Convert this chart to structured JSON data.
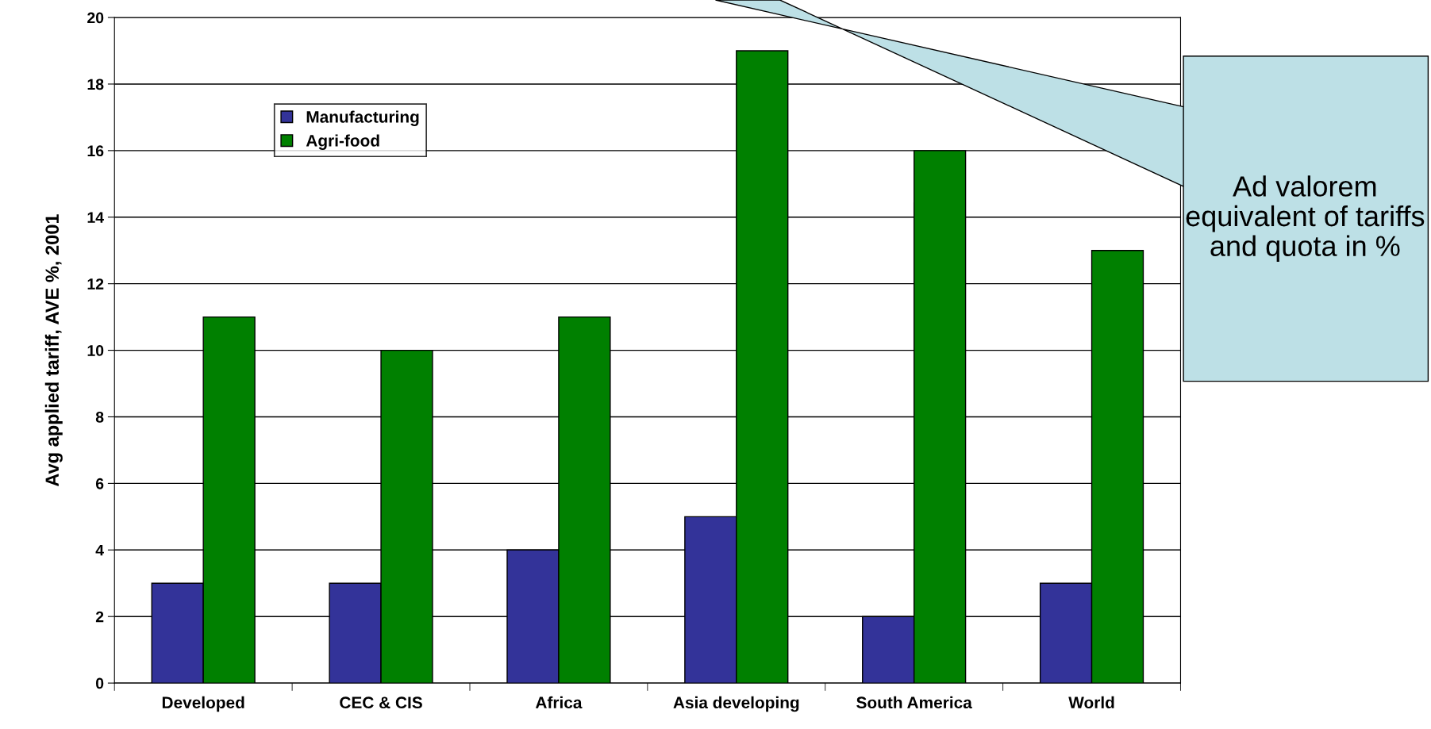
{
  "chart_data": {
    "type": "bar",
    "ylabel": "Avg applied tariff, AVE %, 2001",
    "categories": [
      "Developed",
      "CEC & CIS",
      "Africa",
      "Asia developing",
      "South America",
      "World"
    ],
    "series": [
      {
        "name": "Manufacturing",
        "color": "#333399",
        "values": [
          3,
          3,
          4,
          5,
          2,
          3
        ]
      },
      {
        "name": "Agri-food",
        "color": "#008000",
        "values": [
          11,
          10,
          11,
          19,
          16,
          13
        ]
      }
    ],
    "ylim": [
      0,
      20
    ],
    "yticks": [
      0,
      2,
      4,
      6,
      8,
      10,
      12,
      14,
      16,
      18,
      20
    ],
    "grid": "y",
    "legend": "top left",
    "annotations": [
      "Ad valorem equivalent of tariffs and quota in %"
    ]
  }
}
